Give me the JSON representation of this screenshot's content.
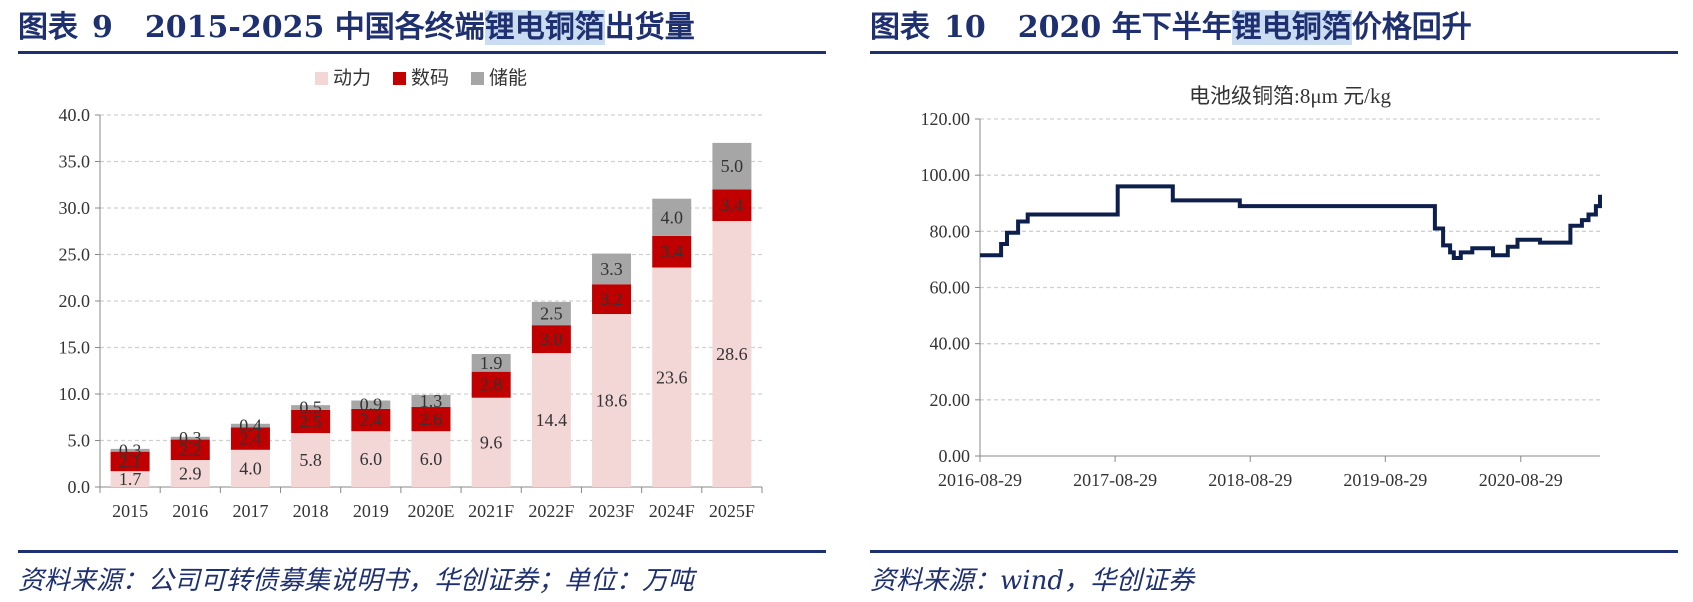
{
  "left": {
    "title_prefix": "图表",
    "title_number": "9",
    "title_main": "2015-2025 中国各终端",
    "title_highlight": "锂电铜箔",
    "title_suffix": "出货量",
    "source": "资料来源：公司可转债募集说明书，华创证券；单位：万吨"
  },
  "right": {
    "title_prefix": "图表",
    "title_number": "10",
    "title_main": "2020 年下半年",
    "title_highlight": "锂电铜箔",
    "title_suffix": "价格回升",
    "source": "资料来源：wind，华创证券"
  },
  "chart_data": [
    {
      "type": "bar",
      "stacked": true,
      "categories": [
        "2015",
        "2016",
        "2017",
        "2018",
        "2019",
        "2020E",
        "2021F",
        "2022F",
        "2023F",
        "2024F",
        "2025F"
      ],
      "series": [
        {
          "name": "动力",
          "color": "#f2d7d6",
          "label_color": "#333333",
          "values": [
            1.7,
            2.9,
            4.0,
            5.8,
            6.0,
            6.0,
            9.6,
            14.4,
            18.6,
            23.6,
            28.6
          ]
        },
        {
          "name": "数码",
          "color": "#c00000",
          "label_color": "#333333",
          "values": [
            2.1,
            2.2,
            2.4,
            2.5,
            2.4,
            2.6,
            2.8,
            3.0,
            3.2,
            3.4,
            3.4
          ]
        },
        {
          "name": "储能",
          "color": "#a6a6a6",
          "label_color": "#333333",
          "values": [
            0.3,
            0.3,
            0.4,
            0.5,
            0.9,
            1.3,
            1.9,
            2.5,
            3.3,
            4.0,
            5.0
          ]
        }
      ],
      "ylim": [
        0,
        40
      ],
      "yticks": [
        "0.0",
        "5.0",
        "10.0",
        "15.0",
        "20.0",
        "25.0",
        "30.0",
        "35.0",
        "40.0"
      ],
      "grid": true,
      "legend": "top-center"
    },
    {
      "type": "line",
      "title": "电池级铜箔:8μm 元/kg",
      "color": "#0d1f4c",
      "x_ticks": [
        "2016-08-29",
        "2017-08-29",
        "2018-08-29",
        "2019-08-29",
        "2020-08-29"
      ],
      "x_range": [
        "2016-08-29",
        "2021-03-31"
      ],
      "ylim": [
        0,
        120
      ],
      "yticks": [
        "0.00",
        "20.00",
        "40.00",
        "60.00",
        "80.00",
        "100.00",
        "120.00"
      ],
      "grid": true,
      "x": [
        "2016-08-29",
        "2016-10-15",
        "2016-10-25",
        "2016-11-10",
        "2016-12-10",
        "2017-01-05",
        "2017-02-01",
        "2017-08-29",
        "2017-09-05",
        "2018-01-25",
        "2018-02-01",
        "2018-07-20",
        "2018-08-01",
        "2019-10-01",
        "2019-12-15",
        "2020-01-10",
        "2020-02-01",
        "2020-02-20",
        "2020-03-01",
        "2020-03-20",
        "2020-04-20",
        "2020-05-20",
        "2020-06-15",
        "2020-07-15",
        "2020-07-25",
        "2020-08-20",
        "2020-10-20",
        "2020-12-15",
        "2021-01-10",
        "2021-02-10",
        "2021-02-28",
        "2021-03-20",
        "2021-03-25",
        "2021-03-31"
      ],
      "values": [
        71.5,
        71.5,
        75.5,
        79.5,
        83.5,
        86.0,
        86.0,
        86.0,
        96.0,
        96.0,
        91.0,
        91.0,
        89.0,
        89.0,
        89.0,
        81.0,
        75.0,
        72.5,
        70.5,
        72.5,
        74.0,
        74.0,
        71.5,
        71.5,
        74.5,
        77.0,
        76.0,
        76.0,
        82.0,
        84.0,
        86.0,
        89.0,
        89.0,
        93.0
      ]
    }
  ]
}
